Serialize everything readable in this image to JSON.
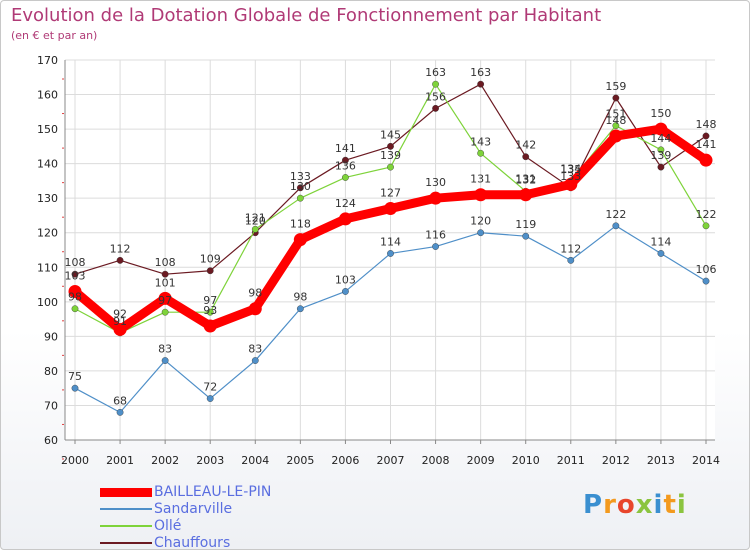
{
  "chart_data": {
    "type": "line",
    "title": "Evolution de la Dotation Globale de Fonctionnement par Habitant",
    "subtitle": "(en € et par an)",
    "x": [
      "2000",
      "2001",
      "2002",
      "2003",
      "2004",
      "2005",
      "2006",
      "2007",
      "2008",
      "2009",
      "2010",
      "2011",
      "2012",
      "2013",
      "2014"
    ],
    "yticks": [
      60,
      70,
      80,
      90,
      100,
      110,
      120,
      130,
      140,
      150,
      160,
      170
    ],
    "ylim": [
      60,
      170
    ],
    "grid": true,
    "legend_position": "bottom-left",
    "series": [
      {
        "name": "Chauffours",
        "color": "#6b1a22",
        "values": [
          108,
          112,
          108,
          109,
          120,
          133,
          141,
          145,
          156,
          163,
          142,
          133,
          159,
          139,
          148
        ],
        "labels": [
          "108",
          "112",
          "108",
          "109",
          "120",
          "133",
          "141",
          "145",
          "156",
          "163",
          "142",
          "133",
          "159",
          "139",
          "148"
        ]
      },
      {
        "name": "Ollé",
        "color": "#7ed33a",
        "values": [
          98,
          91,
          97,
          97,
          121,
          130,
          136,
          139,
          163,
          143,
          132,
          135,
          151,
          144,
          122
        ],
        "labels": [
          "98",
          "91",
          "97",
          "97",
          "121",
          "130",
          "136",
          "139",
          "163",
          "143",
          "132",
          "135",
          "151",
          "144",
          "122"
        ]
      },
      {
        "name": "Sandarville",
        "color": "#4f8fc8",
        "values": [
          75,
          68,
          83,
          72,
          83,
          98,
          103,
          114,
          116,
          120,
          119,
          112,
          122,
          114,
          106
        ],
        "labels": [
          "75",
          "68",
          "83",
          "72",
          "83",
          "98",
          "103",
          "114",
          "116",
          "120",
          "119",
          "112",
          "122",
          "114",
          "106"
        ]
      },
      {
        "name": "BAILLEAU-LE-PIN",
        "color": "#ff0000",
        "values": [
          103,
          92,
          101,
          93,
          98,
          118,
          124,
          127,
          130,
          131,
          131,
          134,
          148,
          150,
          141
        ],
        "labels": [
          "103",
          "92",
          "101",
          "93",
          "98",
          "118",
          "124",
          "127",
          "130",
          "131",
          "131",
          "134",
          "148",
          "150",
          "141"
        ]
      }
    ],
    "legend": [
      "BAILLEAU-LE-PIN",
      "Sandarville",
      "Ollé",
      "Chauffours"
    ]
  },
  "logo": {
    "text": "Proxiti",
    "letters": [
      "P",
      "r",
      "o",
      "x",
      "i",
      "t",
      "i"
    ],
    "colors": [
      "#3a8fd0",
      "#f39a1e",
      "#e8452c",
      "#8bc43f",
      "#3a8fd0",
      "#f39a1e",
      "#8bc43f"
    ]
  }
}
